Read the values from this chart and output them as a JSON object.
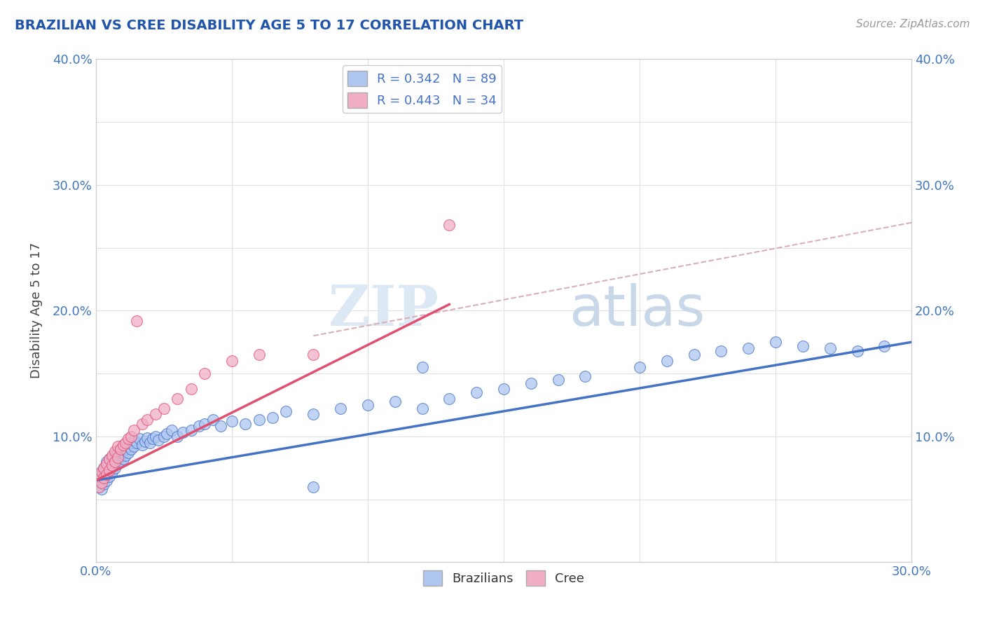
{
  "title": "BRAZILIAN VS CREE DISABILITY AGE 5 TO 17 CORRELATION CHART",
  "source_text": "Source: ZipAtlas.com",
  "ylabel": "Disability Age 5 to 17",
  "xlim": [
    0.0,
    0.3
  ],
  "ylim": [
    0.0,
    0.4
  ],
  "legend_r_brazilian": "R = 0.342",
  "legend_n_brazilian": "N = 89",
  "legend_r_cree": "R = 0.443",
  "legend_n_cree": "N = 34",
  "color_brazilian": "#aec6f0",
  "color_cree": "#f0aec6",
  "line_color_brazilian": "#4472c4",
  "line_color_cree": "#e05070",
  "line_color_trend": "#d8b0b8",
  "watermark_zip": "ZIP",
  "watermark_atlas": "atlas",
  "background_color": "#ffffff",
  "grid_color": "#e0e0e0",
  "title_color": "#2255aa",
  "axis_label_color": "#444444",
  "tick_label_color": "#4477bb",
  "brazilian_x": [
    0.001,
    0.001,
    0.001,
    0.002,
    0.002,
    0.002,
    0.002,
    0.003,
    0.003,
    0.003,
    0.003,
    0.004,
    0.004,
    0.004,
    0.004,
    0.005,
    0.005,
    0.005,
    0.005,
    0.006,
    0.006,
    0.006,
    0.007,
    0.007,
    0.007,
    0.008,
    0.008,
    0.008,
    0.009,
    0.009,
    0.009,
    0.01,
    0.01,
    0.01,
    0.011,
    0.011,
    0.012,
    0.012,
    0.013,
    0.013,
    0.014,
    0.014,
    0.015,
    0.016,
    0.017,
    0.018,
    0.019,
    0.02,
    0.021,
    0.022,
    0.023,
    0.025,
    0.026,
    0.028,
    0.03,
    0.032,
    0.035,
    0.038,
    0.04,
    0.043,
    0.046,
    0.05,
    0.055,
    0.06,
    0.065,
    0.07,
    0.08,
    0.09,
    0.1,
    0.11,
    0.12,
    0.13,
    0.14,
    0.15,
    0.16,
    0.17,
    0.18,
    0.2,
    0.21,
    0.22,
    0.23,
    0.24,
    0.25,
    0.26,
    0.27,
    0.28,
    0.29,
    0.12,
    0.08
  ],
  "brazilian_y": [
    0.06,
    0.065,
    0.07,
    0.058,
    0.063,
    0.068,
    0.072,
    0.062,
    0.067,
    0.072,
    0.075,
    0.065,
    0.07,
    0.075,
    0.08,
    0.068,
    0.073,
    0.078,
    0.082,
    0.072,
    0.077,
    0.083,
    0.075,
    0.08,
    0.085,
    0.078,
    0.083,
    0.088,
    0.08,
    0.085,
    0.09,
    0.082,
    0.087,
    0.092,
    0.085,
    0.09,
    0.087,
    0.092,
    0.09,
    0.095,
    0.092,
    0.097,
    0.095,
    0.098,
    0.093,
    0.096,
    0.099,
    0.095,
    0.098,
    0.1,
    0.097,
    0.1,
    0.102,
    0.105,
    0.1,
    0.103,
    0.105,
    0.108,
    0.11,
    0.113,
    0.108,
    0.112,
    0.11,
    0.113,
    0.115,
    0.12,
    0.118,
    0.122,
    0.125,
    0.128,
    0.122,
    0.13,
    0.135,
    0.138,
    0.142,
    0.145,
    0.148,
    0.155,
    0.16,
    0.165,
    0.168,
    0.17,
    0.175,
    0.172,
    0.17,
    0.168,
    0.172,
    0.155,
    0.06
  ],
  "cree_x": [
    0.001,
    0.001,
    0.002,
    0.002,
    0.003,
    0.003,
    0.004,
    0.004,
    0.005,
    0.005,
    0.006,
    0.006,
    0.007,
    0.007,
    0.008,
    0.008,
    0.009,
    0.01,
    0.011,
    0.012,
    0.013,
    0.014,
    0.015,
    0.017,
    0.019,
    0.022,
    0.025,
    0.03,
    0.035,
    0.04,
    0.05,
    0.06,
    0.08,
    0.13
  ],
  "cree_y": [
    0.06,
    0.068,
    0.063,
    0.072,
    0.067,
    0.075,
    0.07,
    0.078,
    0.073,
    0.082,
    0.077,
    0.085,
    0.08,
    0.088,
    0.083,
    0.092,
    0.09,
    0.093,
    0.095,
    0.098,
    0.1,
    0.105,
    0.192,
    0.11,
    0.113,
    0.118,
    0.122,
    0.13,
    0.138,
    0.15,
    0.16,
    0.165,
    0.165,
    0.268
  ],
  "trend_x": [
    0.08,
    0.3
  ],
  "trend_y": [
    0.18,
    0.27
  ]
}
